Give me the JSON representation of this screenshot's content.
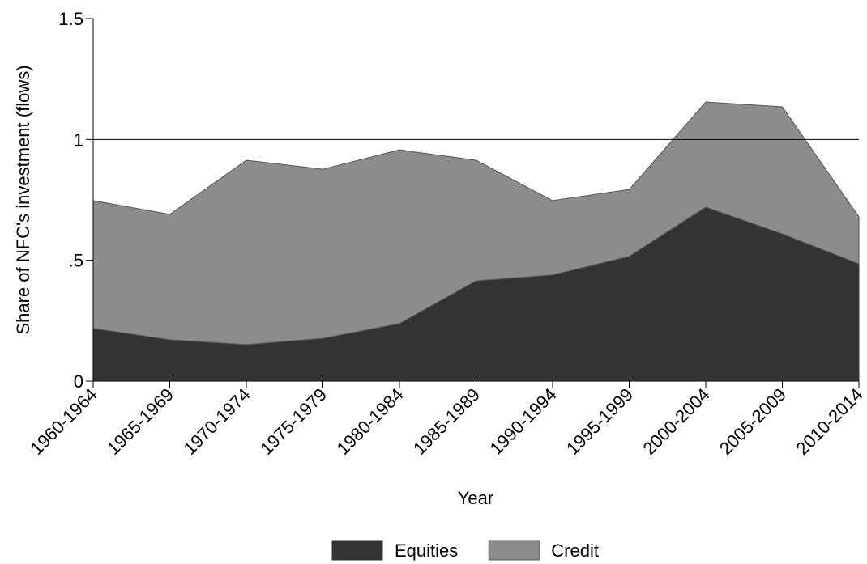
{
  "chart_data": {
    "type": "stacked_area",
    "ylabel": "Share of NFC's investment (flows)",
    "xlabel": "Year",
    "categories": [
      "1960-1964",
      "1965-1969",
      "1970-1974",
      "1975-1979",
      "1980-1984",
      "1985-1989",
      "1990-1994",
      "1995-1999",
      "2000-2004",
      "2005-2009",
      "2010-2014"
    ],
    "series": [
      {
        "name": "Equities",
        "color": "#333333",
        "values": [
          0.218,
          0.171,
          0.151,
          0.177,
          0.238,
          0.415,
          0.439,
          0.516,
          0.72,
          0.609,
          0.485
        ]
      },
      {
        "name": "Credit",
        "color": "#8c8c8c",
        "values": [
          0.529,
          0.519,
          0.763,
          0.7,
          0.719,
          0.499,
          0.308,
          0.277,
          0.435,
          0.526,
          0.195
        ]
      }
    ],
    "ylim": [
      0,
      1.5
    ],
    "yticks": [
      0,
      {
        "value": 0.5,
        "label": ".5"
      },
      1,
      1.5
    ],
    "hline": 1,
    "legend": "bottom"
  }
}
